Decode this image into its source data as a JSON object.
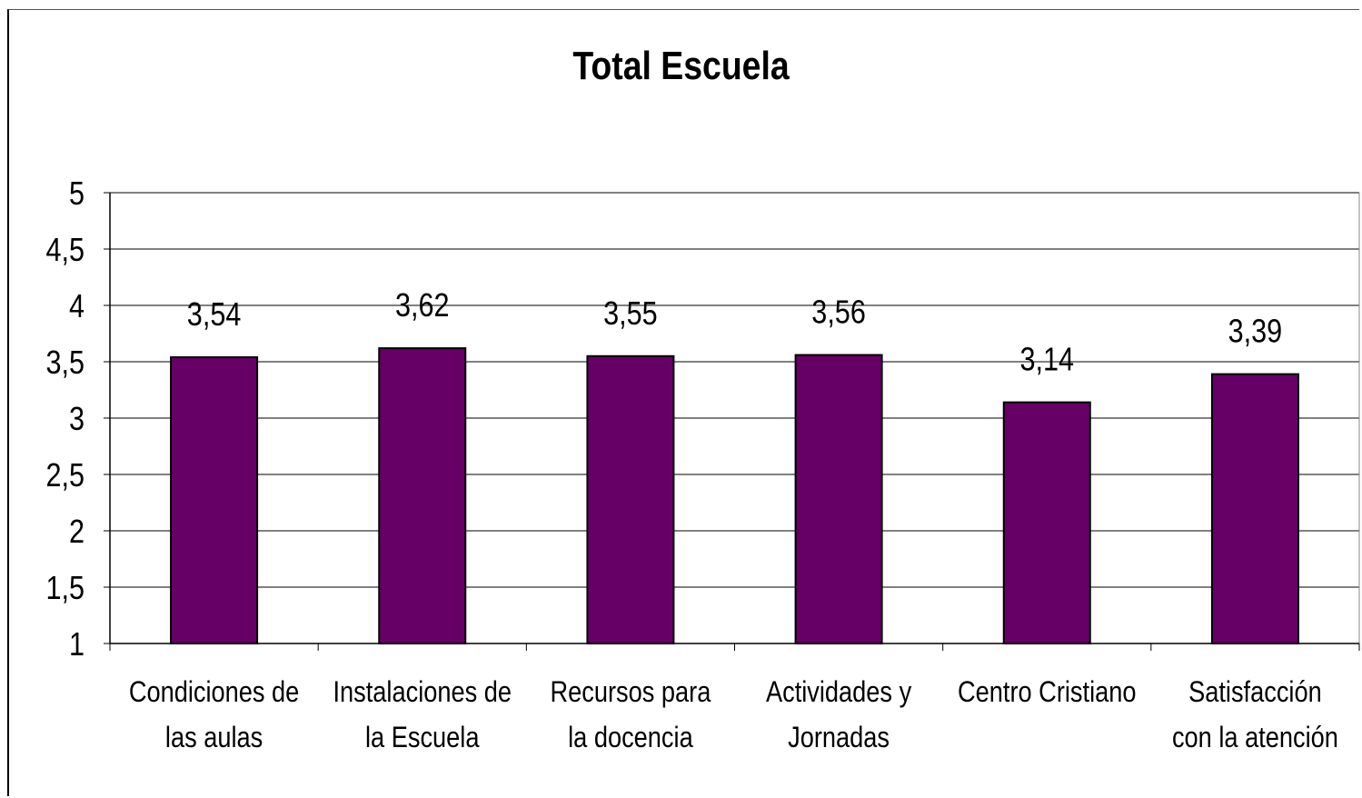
{
  "chart_data": {
    "type": "bar",
    "title": "Total Escuela",
    "categories": [
      [
        "Condiciones de",
        "las aulas"
      ],
      [
        "Instalaciones de",
        "la Escuela"
      ],
      [
        "Recursos para",
        "la docencia"
      ],
      [
        "Actividades y",
        "Jornadas"
      ],
      [
        "Centro Cristiano"
      ],
      [
        "Satisfacción",
        "con la atención"
      ]
    ],
    "values": [
      3.54,
      3.62,
      3.55,
      3.56,
      3.14,
      3.39
    ],
    "value_labels": [
      "3,54",
      "3,62",
      "3,55",
      "3,56",
      "3,14",
      "3,39"
    ],
    "ylim": [
      1,
      5
    ],
    "yticks": [
      1,
      1.5,
      2,
      2.5,
      3,
      3.5,
      4,
      4.5,
      5
    ],
    "ytick_labels": [
      "1",
      "1,5",
      "2",
      "2,5",
      "3",
      "3,5",
      "4",
      "4,5",
      "5"
    ],
    "grid": true,
    "bar_color": "#660066",
    "legend": "none",
    "xlabel": "",
    "ylabel": ""
  }
}
